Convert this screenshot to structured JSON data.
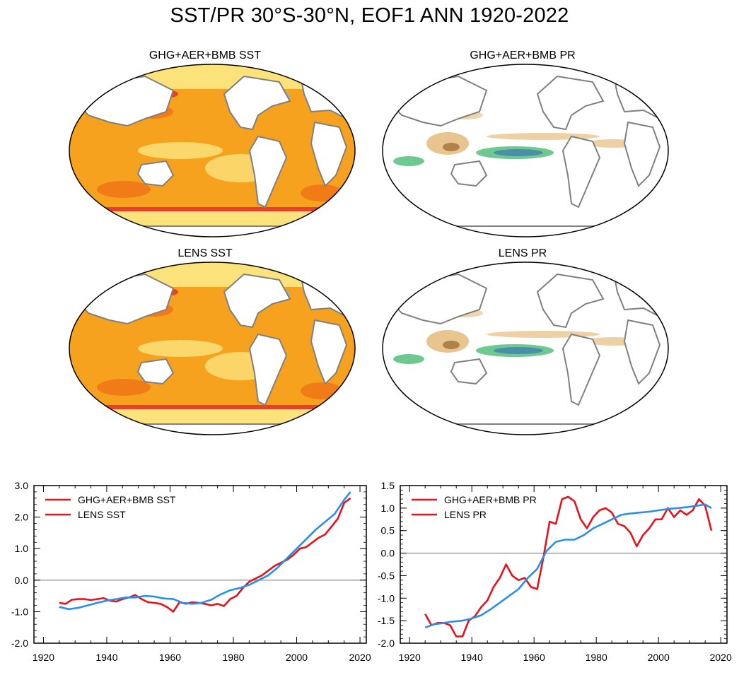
{
  "title": "SST/PR 30°S-30°N, EOF1 ANN 1920-2022",
  "maps": [
    {
      "title": "GHG+AER+BMB SST",
      "kind": "sst"
    },
    {
      "title": "GHG+AER+BMB PR",
      "kind": "pr"
    },
    {
      "title": "LENS SST",
      "kind": "sst"
    },
    {
      "title": "LENS PR",
      "kind": "pr"
    }
  ],
  "colors": {
    "ocean_light": "#fbe27a",
    "ocean_mid": "#f7a21e",
    "ocean_warm": "#f07b17",
    "ocean_hot": "#e8402a",
    "cold": "#6fbfe8",
    "wet": "#6dc98f",
    "wet_strong": "#4a8fa8",
    "dry": "#e8c58f",
    "dry_strong": "#b0824a",
    "land_outline": "#808080",
    "series_ghg": "#e8121a",
    "series_lens": "#2a8fe8",
    "zero_line": "#808080"
  },
  "chart_data": [
    {
      "type": "line",
      "xlim": [
        1917,
        2022
      ],
      "ylim": [
        -2.0,
        3.0
      ],
      "xticks": [
        1920,
        1940,
        1960,
        1980,
        2000,
        2020
      ],
      "yticks": [
        -2.0,
        -1.0,
        0.0,
        1.0,
        2.0,
        3.0
      ],
      "ytick_labels": [
        "-2.0",
        "-1.0",
        "0.0",
        "1.0",
        "2.0",
        "3.0"
      ],
      "legend_position": "top-left",
      "legend": [
        "GHG+AER+BMB SST",
        "LENS SST"
      ],
      "series": [
        {
          "name": "GHG+AER+BMB SST",
          "color": "#e8121a",
          "x": [
            1925,
            1927,
            1929,
            1931,
            1933,
            1935,
            1937,
            1939,
            1941,
            1943,
            1945,
            1947,
            1949,
            1951,
            1953,
            1955,
            1957,
            1959,
            1961,
            1963,
            1965,
            1967,
            1969,
            1971,
            1973,
            1975,
            1977,
            1979,
            1981,
            1983,
            1985,
            1987,
            1989,
            1991,
            1993,
            1995,
            1997,
            1999,
            2001,
            2003,
            2005,
            2007,
            2009,
            2011,
            2013,
            2015,
            2017
          ],
          "y": [
            -0.72,
            -0.75,
            -0.62,
            -0.6,
            -0.6,
            -0.63,
            -0.6,
            -0.57,
            -0.65,
            -0.68,
            -0.6,
            -0.55,
            -0.47,
            -0.6,
            -0.7,
            -0.72,
            -0.75,
            -0.85,
            -1.0,
            -0.7,
            -0.75,
            -0.7,
            -0.72,
            -0.75,
            -0.8,
            -0.75,
            -0.82,
            -0.6,
            -0.5,
            -0.25,
            -0.05,
            0.05,
            0.15,
            0.3,
            0.45,
            0.55,
            0.65,
            0.8,
            1.0,
            1.05,
            1.2,
            1.35,
            1.45,
            1.7,
            1.95,
            2.45,
            2.6
          ]
        },
        {
          "name": "LENS SST",
          "color": "#2a8fe8",
          "x": [
            1925,
            1928,
            1931,
            1934,
            1937,
            1940,
            1943,
            1946,
            1949,
            1952,
            1955,
            1958,
            1961,
            1964,
            1967,
            1970,
            1973,
            1976,
            1979,
            1982,
            1985,
            1988,
            1991,
            1994,
            1997,
            2000,
            2003,
            2006,
            2009,
            2012,
            2015,
            2017
          ],
          "y": [
            -0.85,
            -0.92,
            -0.88,
            -0.8,
            -0.72,
            -0.65,
            -0.6,
            -0.55,
            -0.55,
            -0.5,
            -0.52,
            -0.58,
            -0.6,
            -0.72,
            -0.75,
            -0.72,
            -0.62,
            -0.45,
            -0.32,
            -0.25,
            -0.15,
            0.0,
            0.15,
            0.4,
            0.7,
            1.0,
            1.3,
            1.6,
            1.85,
            2.1,
            2.55,
            2.8
          ]
        }
      ]
    },
    {
      "type": "line",
      "xlim": [
        1917,
        2022
      ],
      "ylim": [
        -2.0,
        1.5
      ],
      "xticks": [
        1920,
        1940,
        1960,
        1980,
        2000,
        2020
      ],
      "yticks": [
        -2.0,
        -1.5,
        -1.0,
        -0.5,
        0.0,
        0.5,
        1.0,
        1.5
      ],
      "ytick_labels": [
        "-2.0",
        "-1.5",
        "-1.0",
        "-0.5",
        "0.0",
        "0.5",
        "1.0",
        "1.5"
      ],
      "legend_position": "top-left",
      "legend": [
        "GHG+AER+BMB PR",
        "LENS PR"
      ],
      "series": [
        {
          "name": "GHG+AER+BMB PR",
          "color": "#e8121a",
          "x": [
            1925,
            1927,
            1929,
            1931,
            1933,
            1935,
            1937,
            1939,
            1941,
            1943,
            1945,
            1947,
            1949,
            1951,
            1953,
            1955,
            1957,
            1959,
            1961,
            1963,
            1965,
            1967,
            1969,
            1971,
            1973,
            1975,
            1977,
            1979,
            1981,
            1983,
            1985,
            1987,
            1989,
            1991,
            1993,
            1995,
            1997,
            1999,
            2001,
            2003,
            2005,
            2007,
            2009,
            2011,
            2013,
            2015,
            2017
          ],
          "y": [
            -1.35,
            -1.6,
            -1.55,
            -1.55,
            -1.6,
            -1.85,
            -1.85,
            -1.5,
            -1.4,
            -1.2,
            -1.05,
            -0.75,
            -0.55,
            -0.25,
            -0.5,
            -0.6,
            -0.55,
            -0.75,
            -0.8,
            -0.1,
            0.7,
            0.65,
            1.2,
            1.25,
            1.15,
            0.75,
            0.55,
            0.8,
            0.95,
            1.0,
            0.9,
            0.65,
            0.6,
            0.45,
            0.15,
            0.4,
            0.55,
            0.75,
            0.75,
            1.0,
            0.8,
            0.95,
            0.85,
            0.95,
            1.2,
            1.05,
            0.5
          ]
        },
        {
          "name": "LENS PR",
          "color": "#2a8fe8",
          "x": [
            1925,
            1928,
            1931,
            1934,
            1937,
            1940,
            1943,
            1946,
            1949,
            1952,
            1955,
            1958,
            1961,
            1964,
            1967,
            1970,
            1973,
            1976,
            1979,
            1982,
            1985,
            1988,
            1991,
            1994,
            1997,
            2000,
            2003,
            2006,
            2009,
            2012,
            2015,
            2017
          ],
          "y": [
            -1.65,
            -1.58,
            -1.55,
            -1.52,
            -1.5,
            -1.45,
            -1.38,
            -1.25,
            -1.1,
            -0.95,
            -0.8,
            -0.55,
            -0.35,
            0.05,
            0.25,
            0.3,
            0.3,
            0.4,
            0.55,
            0.65,
            0.75,
            0.85,
            0.88,
            0.9,
            0.92,
            0.95,
            0.98,
            1.0,
            1.02,
            1.05,
            1.08,
            1.0
          ]
        }
      ]
    }
  ]
}
